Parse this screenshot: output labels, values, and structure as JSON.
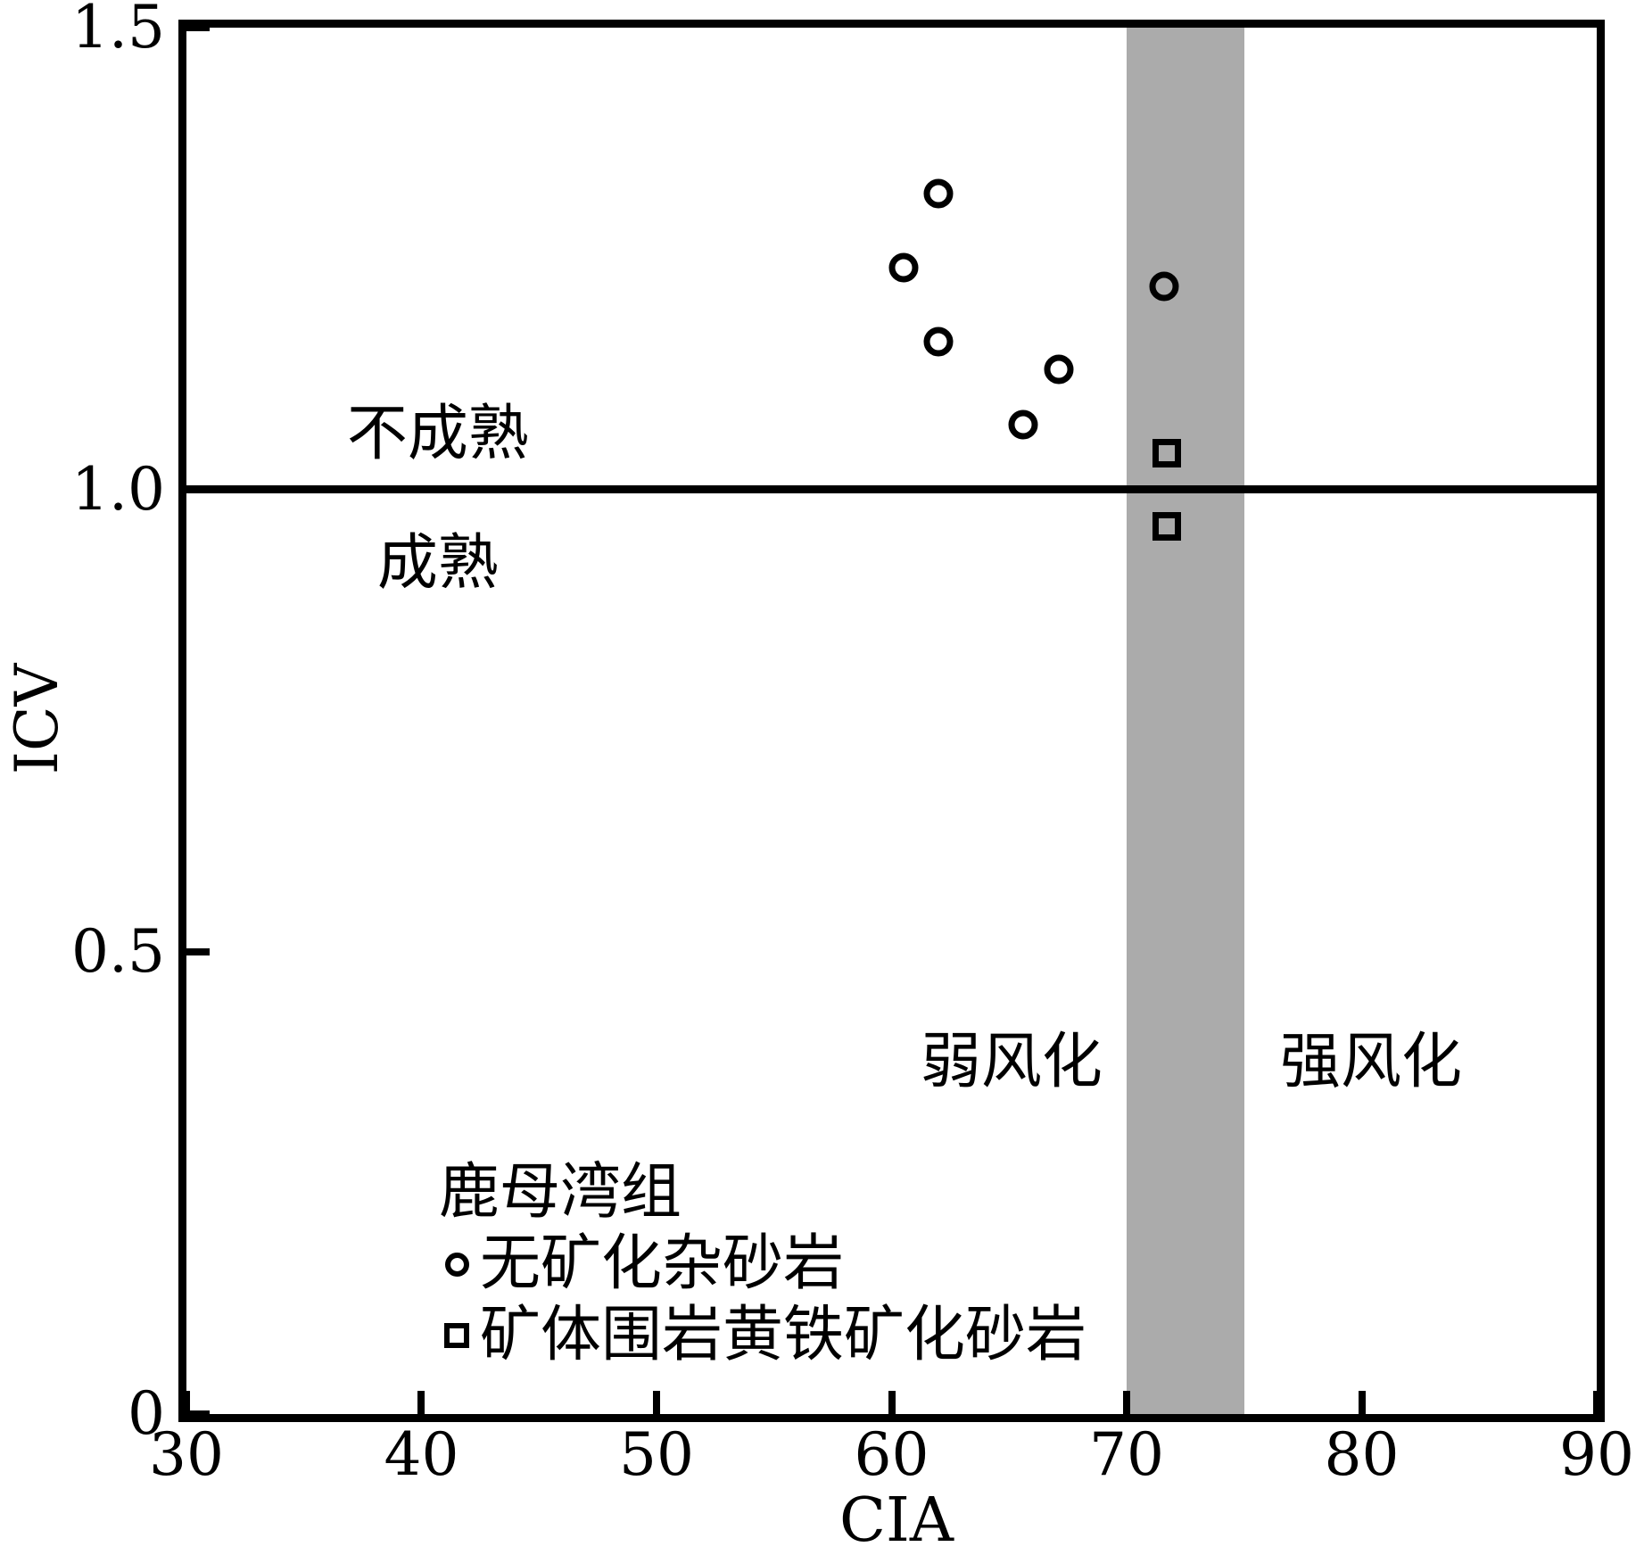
{
  "figure": {
    "background": "#ffffff",
    "axis_color": "#000000"
  },
  "chart_data": {
    "type": "scatter",
    "xlabel": "CIA",
    "ylabel": "ICV",
    "xlim": [
      30,
      90
    ],
    "ylim": [
      0,
      1.5
    ],
    "x_ticks": [
      30,
      40,
      50,
      60,
      70,
      80,
      90
    ],
    "x_tick_labels": [
      "30",
      "40",
      "50",
      "60",
      "70",
      "80",
      "90"
    ],
    "y_ticks": [
      0,
      0.5,
      1.0,
      1.5
    ],
    "y_tick_labels": [
      "0",
      "0.5",
      "1.0",
      "1.5"
    ],
    "grid": false,
    "horizontal_line_y": 1.0,
    "shaded_band": {
      "x_from": 70,
      "x_to": 75,
      "color": "#ababab"
    },
    "series": [
      {
        "name": "无矿化杂砂岩",
        "marker": "circle",
        "color": "#000000",
        "points": [
          [
            62.0,
            1.32
          ],
          [
            60.5,
            1.24
          ],
          [
            62.0,
            1.16
          ],
          [
            67.1,
            1.13
          ],
          [
            65.6,
            1.07
          ],
          [
            71.6,
            1.22
          ]
        ]
      },
      {
        "name": "矿体围岩黄铁矿化砂岩",
        "marker": "square",
        "color": "#000000",
        "points": [
          [
            71.7,
            1.04
          ],
          [
            71.7,
            0.96
          ]
        ]
      }
    ],
    "region_labels": [
      {
        "text": "不成熟",
        "x": 40.7,
        "y": 1.06
      },
      {
        "text": "成熟",
        "x": 40.7,
        "y": 0.92
      },
      {
        "text": "弱风化",
        "x": 65.1,
        "y": 0.38
      },
      {
        "text": "强风化",
        "x": 80.4,
        "y": 0.38
      }
    ]
  },
  "legend": {
    "title": "鹿母湾组",
    "items": [
      {
        "marker": "circle",
        "label": "无矿化杂砂岩"
      },
      {
        "marker": "square",
        "label": "矿体围岩黄铁矿化砂岩"
      }
    ]
  }
}
